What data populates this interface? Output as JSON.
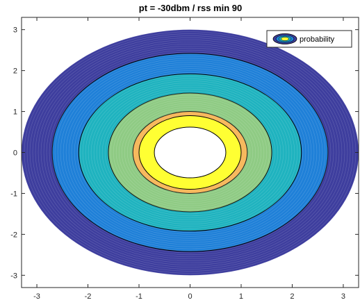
{
  "chart_data": {
    "type": "filled-contour",
    "title": "pt = -30dbm / rss min 90",
    "xlabel": "",
    "ylabel": "",
    "xlim": [
      -3.3,
      3.3
    ],
    "ylim": [
      -3.3,
      3.3
    ],
    "xticks": [
      -3,
      -2,
      -1,
      0,
      1,
      2,
      3
    ],
    "yticks": [
      -3,
      -2,
      -1,
      0,
      1,
      2,
      3
    ],
    "xtick_labels": [
      "-3",
      "-2",
      "-1",
      "0",
      "1",
      "2",
      "3"
    ],
    "ytick_labels": [
      "-3",
      "-2",
      "-1",
      "0",
      "1",
      "2",
      "3"
    ],
    "legend": {
      "entries": [
        "probability"
      ],
      "location": "top-right"
    },
    "grid": false,
    "levels": [
      {
        "rx": 3.3,
        "ry": 3.0,
        "color": "#3e3e9e"
      },
      {
        "rx": 2.7,
        "ry": 2.42,
        "color": "#1f80d8"
      },
      {
        "rx": 2.18,
        "ry": 1.92,
        "color": "#1fb3bf"
      },
      {
        "rx": 1.6,
        "ry": 1.45,
        "color": "#8fcb84"
      },
      {
        "rx": 1.12,
        "ry": 1.0,
        "color": "#f7b95e"
      },
      {
        "rx": 1.0,
        "ry": 0.9,
        "color": "#ffff33"
      },
      {
        "rx": 0.7,
        "ry": 0.62,
        "color": "#ffffff"
      }
    ]
  }
}
